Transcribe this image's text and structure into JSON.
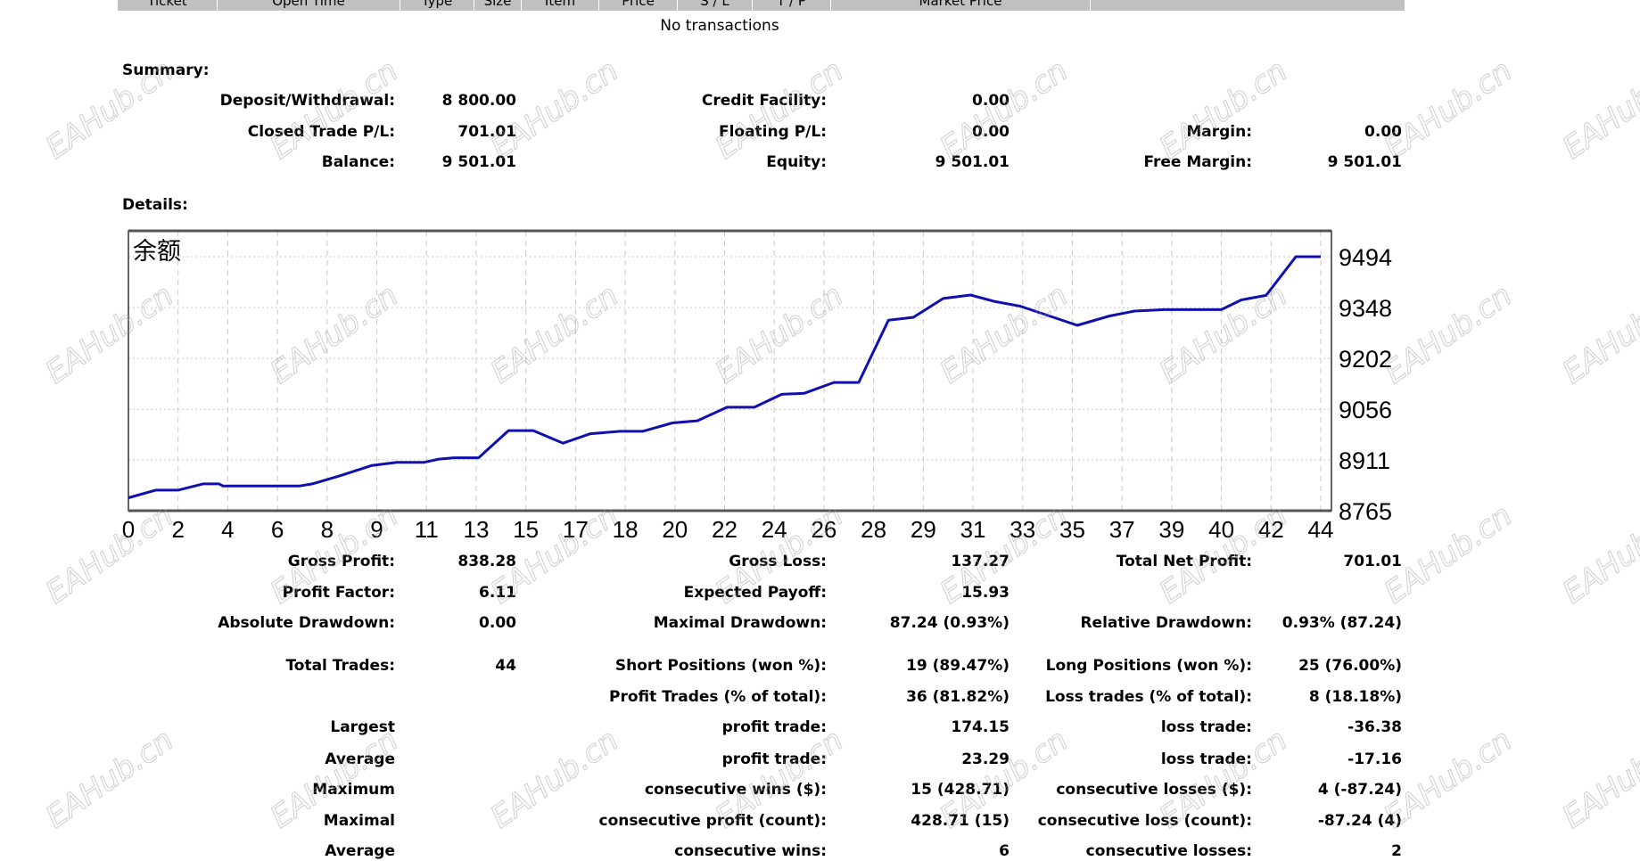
{
  "table_header": [
    "Ticket",
    "Open Time",
    "Type",
    "Size",
    "Item",
    "Price",
    "S / L",
    "T / P",
    "Market Price",
    ""
  ],
  "no_transactions": "No transactions",
  "summary": {
    "title": "Summary:",
    "rows": [
      [
        "Deposit/Withdrawal:",
        "8 800.00",
        "Credit Facility:",
        "0.00",
        "",
        ""
      ],
      [
        "Closed Trade P/L:",
        "701.01",
        "Floating P/L:",
        "0.00",
        "Margin:",
        "0.00"
      ],
      [
        "Balance:",
        "9 501.01",
        "Equity:",
        "9 501.01",
        "Free Margin:",
        "9 501.01"
      ]
    ]
  },
  "details": {
    "title": "Details:",
    "rows": [
      [
        "Gross Profit:",
        "838.28",
        "Gross Loss:",
        "137.27",
        "Total Net Profit:",
        "701.01"
      ],
      [
        "Profit Factor:",
        "6.11",
        "Expected Payoff:",
        "15.93",
        "",
        ""
      ],
      [
        "Absolute Drawdown:",
        "0.00",
        "Maximal Drawdown:",
        "87.24 (0.93%)",
        "Relative Drawdown:",
        "0.93% (87.24)"
      ],
      [
        "Total Trades:",
        "44",
        "Short Positions (won %):",
        "19 (89.47%)",
        "Long Positions (won %):",
        "25 (76.00%)"
      ],
      [
        "",
        "",
        "Profit Trades (% of total):",
        "36 (81.82%)",
        "Loss trades (% of total):",
        "8 (18.18%)"
      ],
      [
        "Largest",
        "",
        "profit trade:",
        "174.15",
        "loss trade:",
        "-36.38"
      ],
      [
        "Average",
        "",
        "profit trade:",
        "23.29",
        "loss trade:",
        "-17.16"
      ],
      [
        "Maximum",
        "",
        "consecutive wins ($):",
        "15 (428.71)",
        "consecutive losses ($):",
        "4 (-87.24)"
      ],
      [
        "Maximal",
        "",
        "consecutive profit (count):",
        "428.71 (15)",
        "consecutive loss (count):",
        "-87.24 (4)"
      ],
      [
        "Average",
        "",
        "consecutive wins:",
        "6",
        "consecutive losses:",
        "2"
      ]
    ]
  },
  "watermark": "EAHub.cn",
  "chart_data": {
    "type": "line",
    "title": "余额",
    "x_ticks": [
      0,
      2,
      4,
      6,
      8,
      9,
      11,
      13,
      15,
      17,
      18,
      20,
      22,
      24,
      26,
      28,
      29,
      31,
      33,
      35,
      37,
      39,
      40,
      42,
      44
    ],
    "y_ticks": [
      8765,
      8911,
      9056,
      9202,
      9348,
      9494
    ],
    "ylim": [
      8765,
      9494
    ],
    "grid": true,
    "line_color": "#1010b0",
    "series": [
      {
        "x": [
          0,
          1.1,
          2.0,
          3.0,
          3.65,
          3.8,
          6.9,
          7.4,
          8.3,
          8.9,
          9.8,
          10.9,
          11.5,
          12.1,
          13.1,
          14.3,
          15.3,
          16.5,
          17.3,
          17.9,
          18.7,
          19.9,
          20.9,
          22.1,
          23.2,
          24.3,
          25.2,
          26.4,
          27.4,
          28.3,
          28.8,
          29.8,
          30.9,
          31.9,
          32.9,
          35.2,
          36.5,
          37.5,
          38.7,
          40.0,
          40.8,
          41.8,
          43.0,
          44
        ],
        "y": [
          8802,
          8824,
          8824,
          8842,
          8842,
          8836,
          8836,
          8842,
          8867,
          8895,
          8904,
          8904,
          8913,
          8917,
          8917,
          8995,
          8995,
          8959,
          8986,
          8993,
          8993,
          9017,
          9023,
          9062,
          9062,
          9099,
          9102,
          9133,
          9133,
          9312,
          9320,
          9374,
          9384,
          9365,
          9352,
          9297,
          9324,
          9338,
          9342,
          9342,
          9370,
          9383,
          9494,
          9494
        ]
      }
    ]
  }
}
